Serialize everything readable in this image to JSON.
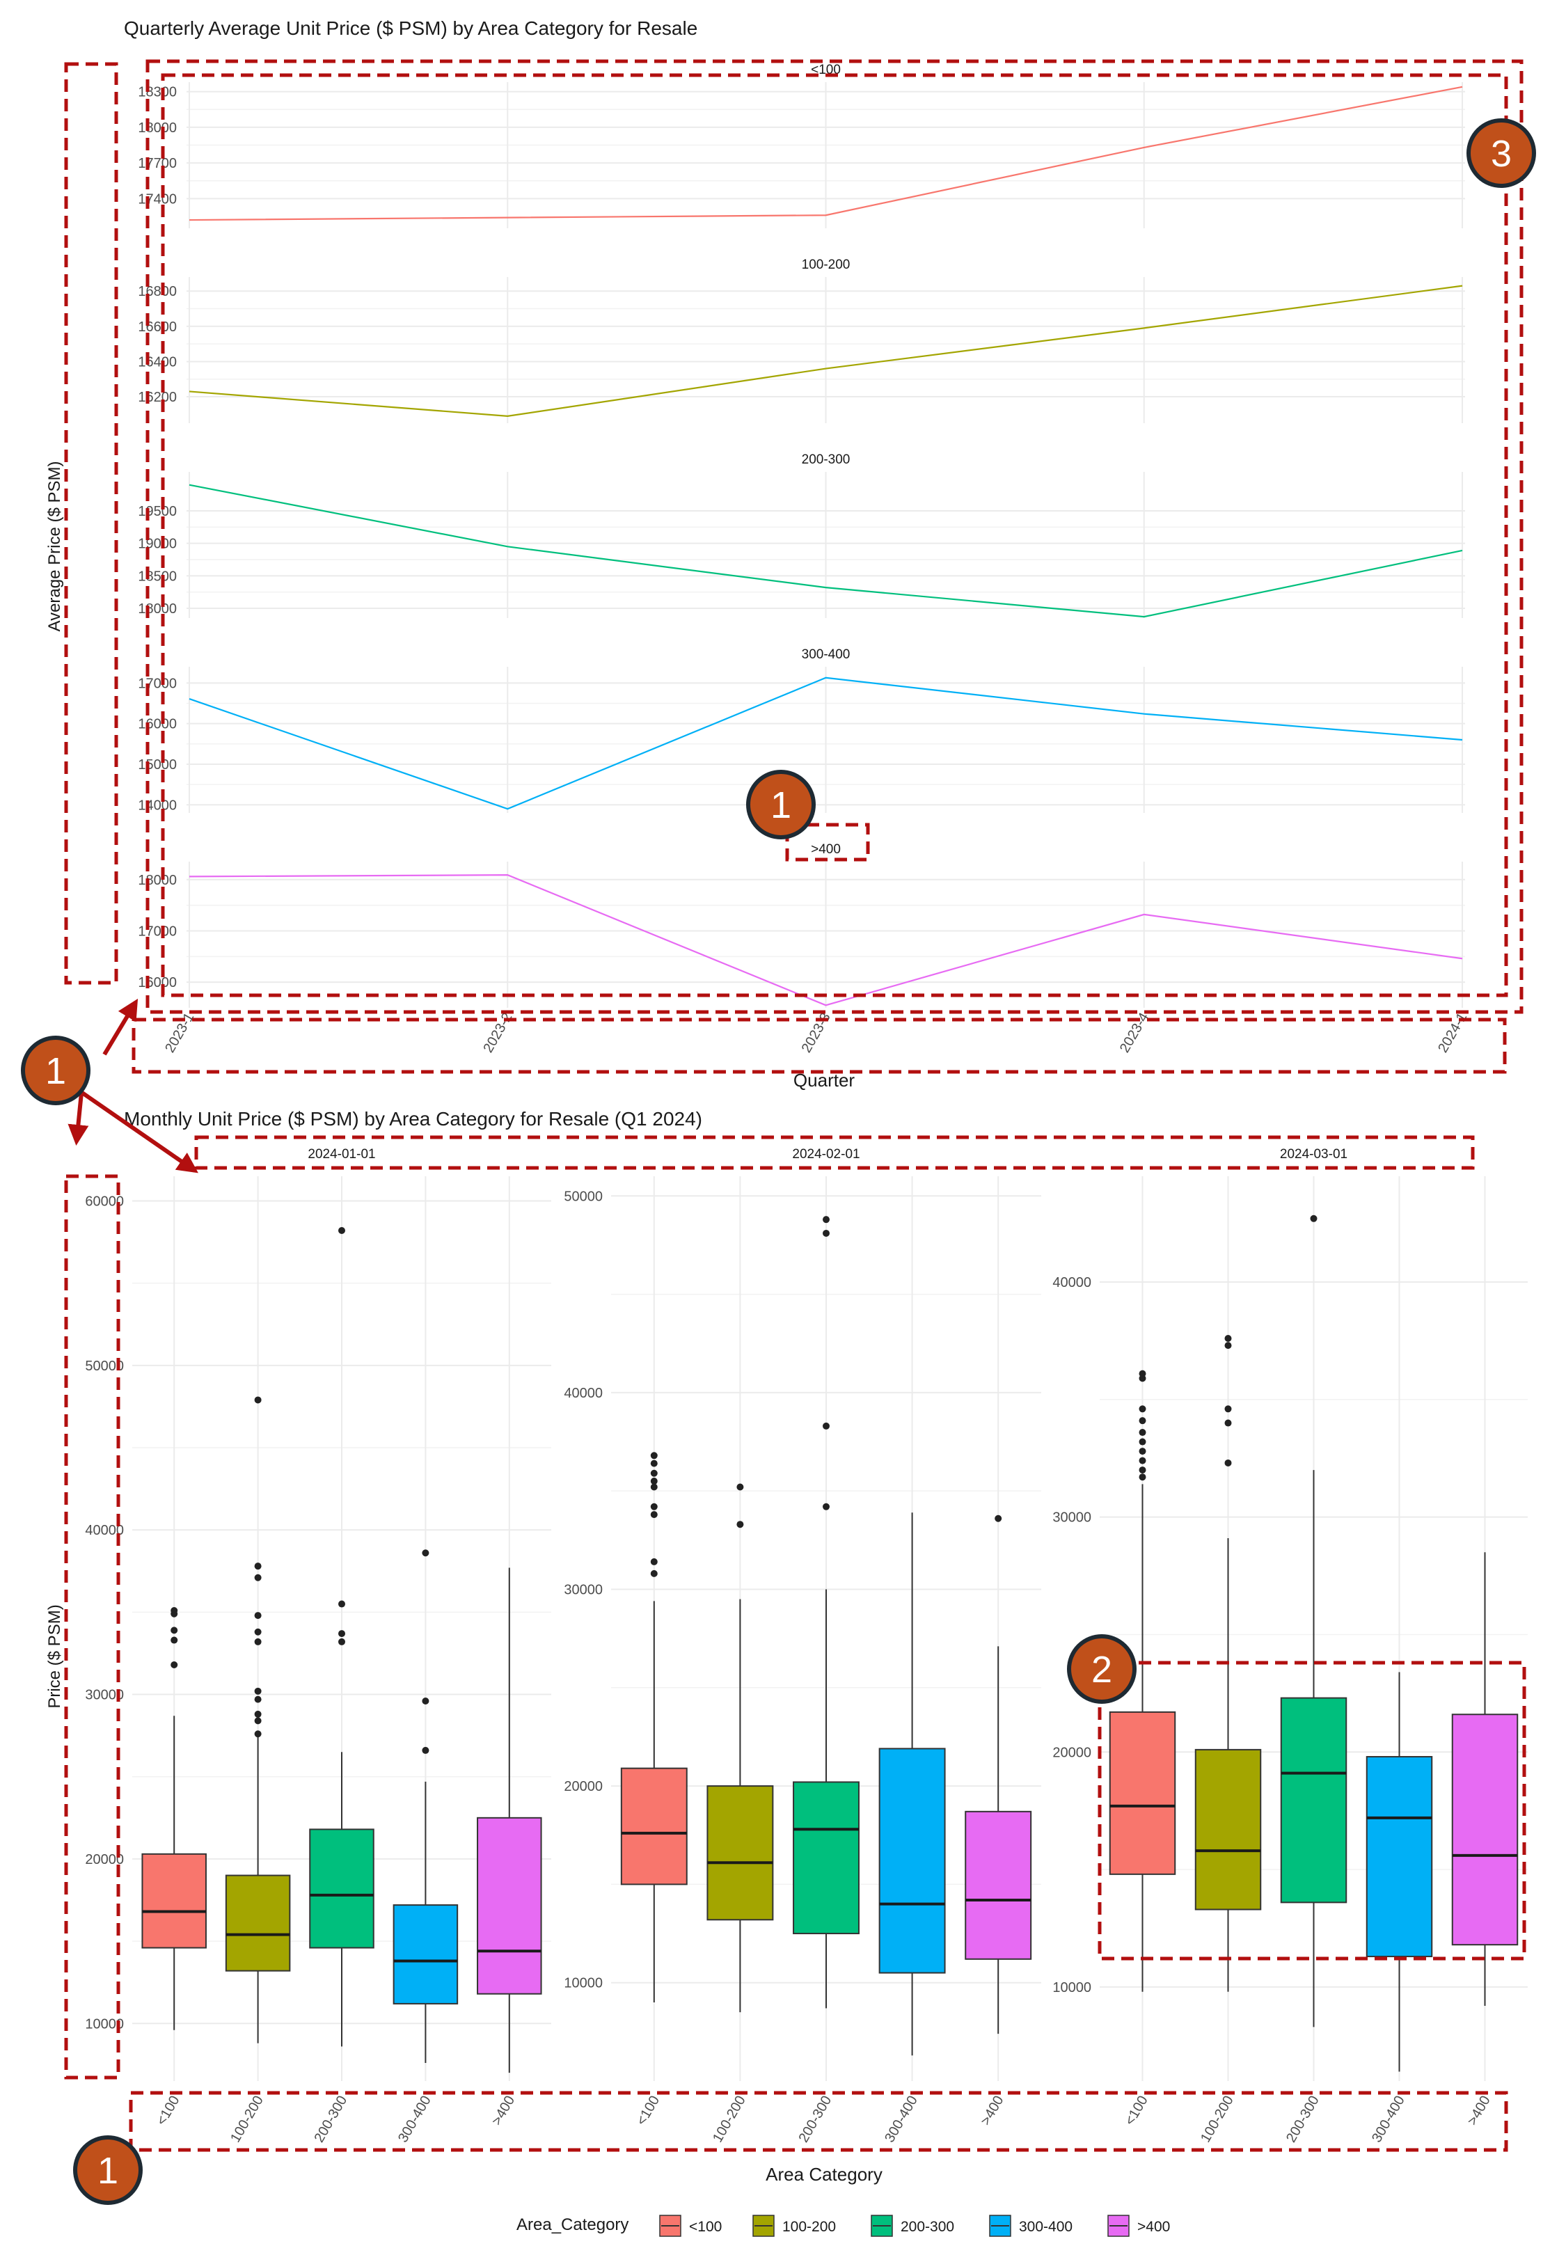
{
  "chart_data": [
    {
      "type": "line",
      "title": "Quarterly Average Unit Price ($ PSM) by Area Category for Resale",
      "xlabel": "Quarter",
      "ylabel": "Average Price ($ PSM)",
      "x": [
        "2023-1",
        "2023-2",
        "2023-3",
        "2023-4",
        "2024-1"
      ],
      "facets": [
        {
          "name": "<100",
          "color": "#F8766D",
          "ylim": [
            17150,
            18380
          ],
          "yticks": [
            17400,
            17700,
            18000,
            18300
          ],
          "values": [
            17220,
            17240,
            17260,
            17830,
            18340
          ]
        },
        {
          "name": "100-200",
          "color": "#A3A500",
          "ylim": [
            16050,
            16880
          ],
          "yticks": [
            16200,
            16400,
            16600,
            16800
          ],
          "values": [
            16230,
            16090,
            16360,
            16590,
            16830
          ]
        },
        {
          "name": "200-300",
          "color": "#00BF7D",
          "ylim": [
            17850,
            20100
          ],
          "yticks": [
            18000,
            18500,
            19000,
            19500
          ],
          "values": [
            19900,
            18950,
            18320,
            17870,
            18890
          ]
        },
        {
          "name": "300-400",
          "color": "#00B0F6",
          "ylim": [
            13800,
            17400
          ],
          "yticks": [
            14000,
            15000,
            16000,
            17000
          ],
          "values": [
            16610,
            13900,
            17130,
            16240,
            15600
          ]
        },
        {
          "name": ">400",
          "color": "#E76BF3",
          "ylim": [
            15500,
            18350
          ],
          "yticks": [
            16000,
            17000,
            18000
          ],
          "values": [
            18060,
            18090,
            15550,
            17320,
            16460
          ]
        }
      ]
    },
    {
      "type": "box",
      "title": "Monthly Unit Price ($ PSM) by Area Category for Resale (Q1 2024)",
      "xlabel": "Area Category",
      "ylabel": "Price ($ PSM)",
      "categories": [
        "<100",
        "100-200",
        "200-300",
        "300-400",
        ">400"
      ],
      "colors": [
        "#F8766D",
        "#A3A500",
        "#00BF7D",
        "#00B0F6",
        "#E76BF3"
      ],
      "panels": [
        {
          "name": "2024-01-01",
          "ylim": [
            6500,
            61500
          ],
          "yticks": [
            10000,
            20000,
            30000,
            40000,
            50000,
            60000
          ],
          "boxes": [
            {
              "min": 9600,
              "q1": 14600,
              "median": 16800,
              "q3": 20300,
              "max": 28700,
              "outliers": [
                31800,
                33300,
                33900,
                34900,
                35100
              ]
            },
            {
              "min": 8800,
              "q1": 13200,
              "median": 15400,
              "q3": 19000,
              "max": 27400,
              "outliers": [
                27600,
                28400,
                28800,
                29700,
                30200,
                33200,
                33800,
                34800,
                37100,
                37800,
                47900
              ]
            },
            {
              "min": 8600,
              "q1": 14600,
              "median": 17800,
              "q3": 21800,
              "max": 26500,
              "outliers": [
                33200,
                33700,
                35500,
                58200
              ]
            },
            {
              "min": 7600,
              "q1": 11200,
              "median": 13800,
              "q3": 17200,
              "max": 24700,
              "outliers": [
                26600,
                29600,
                38600
              ]
            },
            {
              "min": 7000,
              "q1": 11800,
              "median": 14400,
              "q3": 22500,
              "max": 37700,
              "outliers": []
            }
          ]
        },
        {
          "name": "2024-02-01",
          "ylim": [
            5000,
            51000
          ],
          "yticks": [
            10000,
            20000,
            30000,
            40000,
            50000
          ],
          "boxes": [
            {
              "min": 9000,
              "q1": 15000,
              "median": 17600,
              "q3": 20900,
              "max": 29400,
              "outliers": [
                30800,
                31400,
                33800,
                34200,
                35200,
                35500,
                35900,
                36400,
                36800
              ]
            },
            {
              "min": 8500,
              "q1": 13200,
              "median": 16100,
              "q3": 20000,
              "max": 29500,
              "outliers": [
                33300,
                35200
              ]
            },
            {
              "min": 8700,
              "q1": 12500,
              "median": 17800,
              "q3": 20200,
              "max": 30000,
              "outliers": [
                34200,
                38300,
                48100,
                48800
              ]
            },
            {
              "min": 6300,
              "q1": 10500,
              "median": 14000,
              "q3": 21900,
              "max": 33900,
              "outliers": []
            },
            {
              "min": 7400,
              "q1": 11200,
              "median": 14200,
              "q3": 18700,
              "max": 27100,
              "outliers": [
                33600
              ]
            }
          ]
        },
        {
          "name": "2024-03-01",
          "ylim": [
            6000,
            44500
          ],
          "yticks": [
            10000,
            20000,
            30000,
            40000
          ],
          "boxes": [
            {
              "min": 9800,
              "q1": 14800,
              "median": 17700,
              "q3": 21700,
              "max": 31400,
              "outliers": [
                31700,
                32000,
                32400,
                32800,
                33200,
                33600,
                34100,
                34600,
                35900,
                36100
              ]
            },
            {
              "min": 9800,
              "q1": 13300,
              "median": 15800,
              "q3": 20100,
              "max": 29100,
              "outliers": [
                32300,
                34000,
                34600,
                37300,
                37600
              ]
            },
            {
              "min": 8300,
              "q1": 13600,
              "median": 19100,
              "q3": 22300,
              "max": 32000,
              "outliers": [
                42700
              ]
            },
            {
              "min": 6400,
              "q1": 11300,
              "median": 17200,
              "q3": 19800,
              "max": 23400,
              "outliers": []
            },
            {
              "min": 9200,
              "q1": 11800,
              "median": 15600,
              "q3": 21600,
              "max": 28500,
              "outliers": []
            }
          ]
        }
      ]
    }
  ],
  "legend": {
    "title": "Area_Category",
    "items": [
      {
        "label": "<100",
        "color": "#F8766D"
      },
      {
        "label": "100-200",
        "color": "#A3A500"
      },
      {
        "label": "200-300",
        "color": "#00BF7D"
      },
      {
        "label": "300-400",
        "color": "#00B0F6"
      },
      {
        "label": ">400",
        "color": "#E76BF3"
      }
    ]
  },
  "annotations": {
    "color": "#B20F0F",
    "badge_color": "#C0501A",
    "badges": [
      "1",
      "1",
      "1",
      "2",
      "3"
    ]
  }
}
